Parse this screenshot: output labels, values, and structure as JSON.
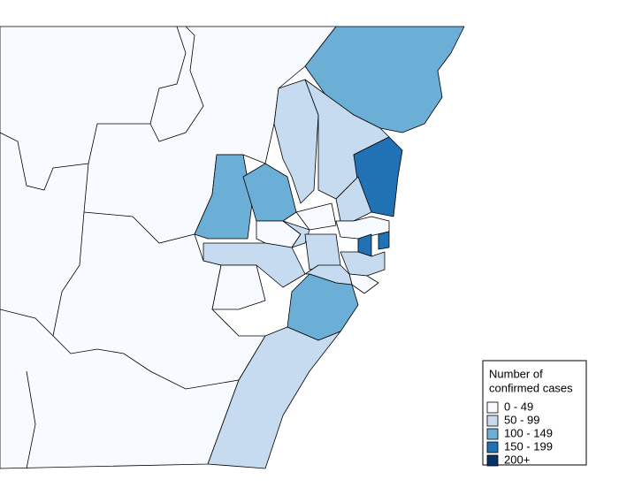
{
  "legend": {
    "title_lines": [
      "Number of",
      "confirmed cases"
    ],
    "entries": [
      {
        "label": "0 - 49",
        "color": "#f7fbff"
      },
      {
        "label": "50 - 99",
        "color": "#c6dbef"
      },
      {
        "label": "100 - 149",
        "color": "#6baed6"
      },
      {
        "label": "150 - 199",
        "color": "#2171b5"
      },
      {
        "label": "200+",
        "color": "#08306b"
      }
    ]
  }
}
